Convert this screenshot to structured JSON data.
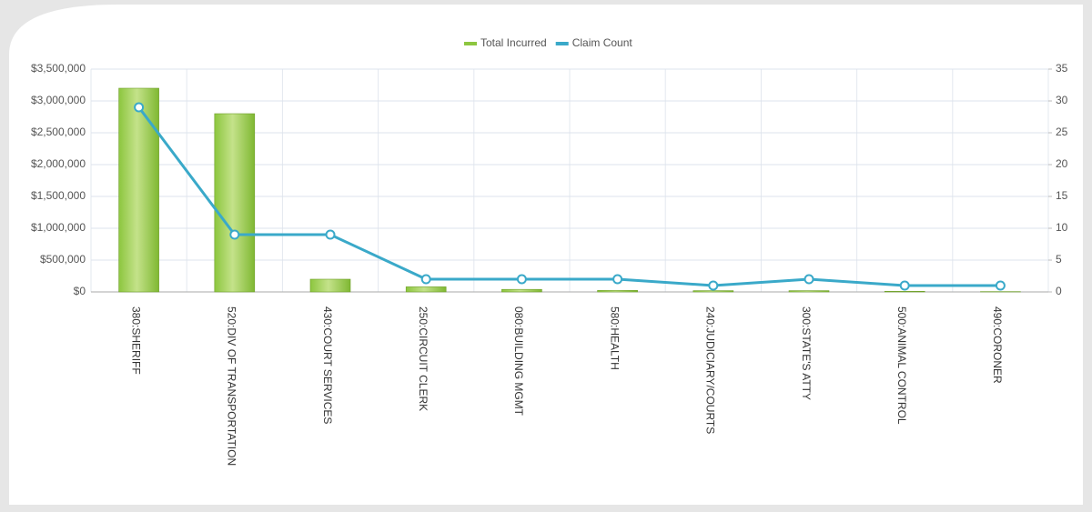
{
  "chart_data": {
    "type": "bar",
    "categories": [
      "380:SHERIFF",
      "520:DIV OF TRANSPORTATION",
      "430:COURT SERVICES",
      "250:CIRCUIT CLERK",
      "080:BUILDING MGMT",
      "580:HEALTH",
      "240:JUDICIARY/COURTS",
      "300:STATE'S ATTY",
      "500:ANIMAL CONTROL",
      "490:CORONER"
    ],
    "series": [
      {
        "name": "Total Incurred",
        "type": "bar",
        "color": "#8dc63f",
        "values": [
          3200000,
          2800000,
          200000,
          80000,
          40000,
          25000,
          20000,
          20000,
          10000,
          5000
        ]
      },
      {
        "name": "Claim Count",
        "type": "line",
        "axis": "y2",
        "color": "#3aa9c9",
        "values": [
          29,
          9,
          9,
          2,
          2,
          2,
          1,
          2,
          1,
          1
        ]
      }
    ],
    "ylim": [
      0,
      3500000
    ],
    "yticks": [
      {
        "value": 0,
        "label": "$0"
      },
      {
        "value": 500000,
        "label": "$500,000"
      },
      {
        "value": 1000000,
        "label": "$1,000,000"
      },
      {
        "value": 1500000,
        "label": "$1,500,000"
      },
      {
        "value": 2000000,
        "label": "$2,000,000"
      },
      {
        "value": 2500000,
        "label": "$2,500,000"
      },
      {
        "value": 3000000,
        "label": "$3,000,000"
      },
      {
        "value": 3500000,
        "label": "$3,500,000"
      }
    ],
    "y2lim": [
      0,
      35
    ],
    "y2ticks": [
      0,
      5,
      10,
      15,
      20,
      25,
      30,
      35
    ],
    "grid": true,
    "legend": "top"
  }
}
